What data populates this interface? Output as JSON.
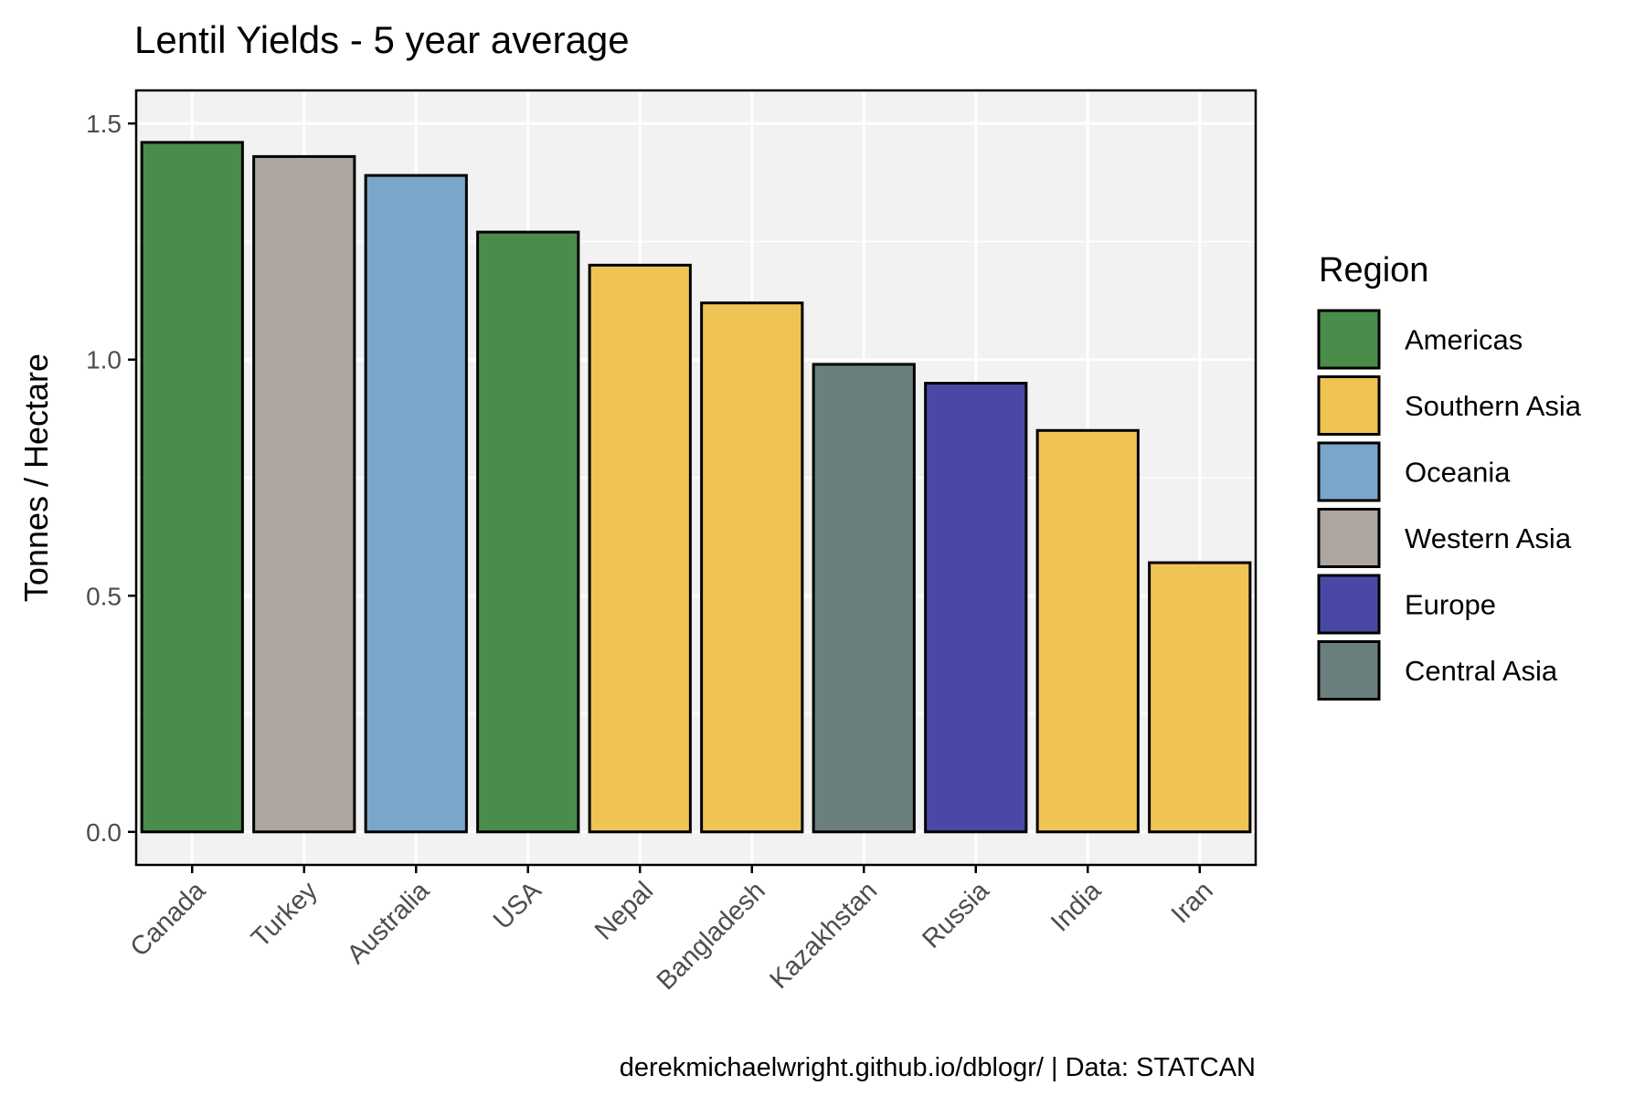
{
  "chart_data": {
    "type": "bar",
    "title": "Lentil Yields - 5 year average",
    "xlabel": "",
    "ylabel": "Tonnes / Hectare",
    "caption": "derekmichaelwright.github.io/dblogr/ | Data: STATCAN",
    "categories": [
      "Canada",
      "Turkey",
      "Australia",
      "USA",
      "Nepal",
      "Bangladesh",
      "Kazakhstan",
      "Russia",
      "India",
      "Iran"
    ],
    "values": [
      1.46,
      1.43,
      1.39,
      1.27,
      1.2,
      1.12,
      0.99,
      0.95,
      0.85,
      0.57
    ],
    "regions": [
      "Americas",
      "Western Asia",
      "Oceania",
      "Americas",
      "Southern Asia",
      "Southern Asia",
      "Central Asia",
      "Europe",
      "Southern Asia",
      "Southern Asia"
    ],
    "ylim": [
      -0.07,
      1.57
    ],
    "yticks": [
      0.0,
      0.5,
      1.0,
      1.5
    ],
    "ytick_labels": [
      "0.0",
      "0.5",
      "1.0",
      "1.5"
    ],
    "grid": true,
    "legend": {
      "title": "Region",
      "position": "right",
      "entries": [
        {
          "label": "Americas",
          "color": "#4a8c4a"
        },
        {
          "label": "Southern Asia",
          "color": "#f0c355"
        },
        {
          "label": "Oceania",
          "color": "#7aa6c9"
        },
        {
          "label": "Western Asia",
          "color": "#ada59e"
        },
        {
          "label": "Europe",
          "color": "#4949a5"
        },
        {
          "label": "Central Asia",
          "color": "#6a7f7e"
        }
      ]
    },
    "colors": {
      "panel_background": "#f2f2f2",
      "grid": "#ffffff",
      "bar_outline": "#000000"
    }
  }
}
